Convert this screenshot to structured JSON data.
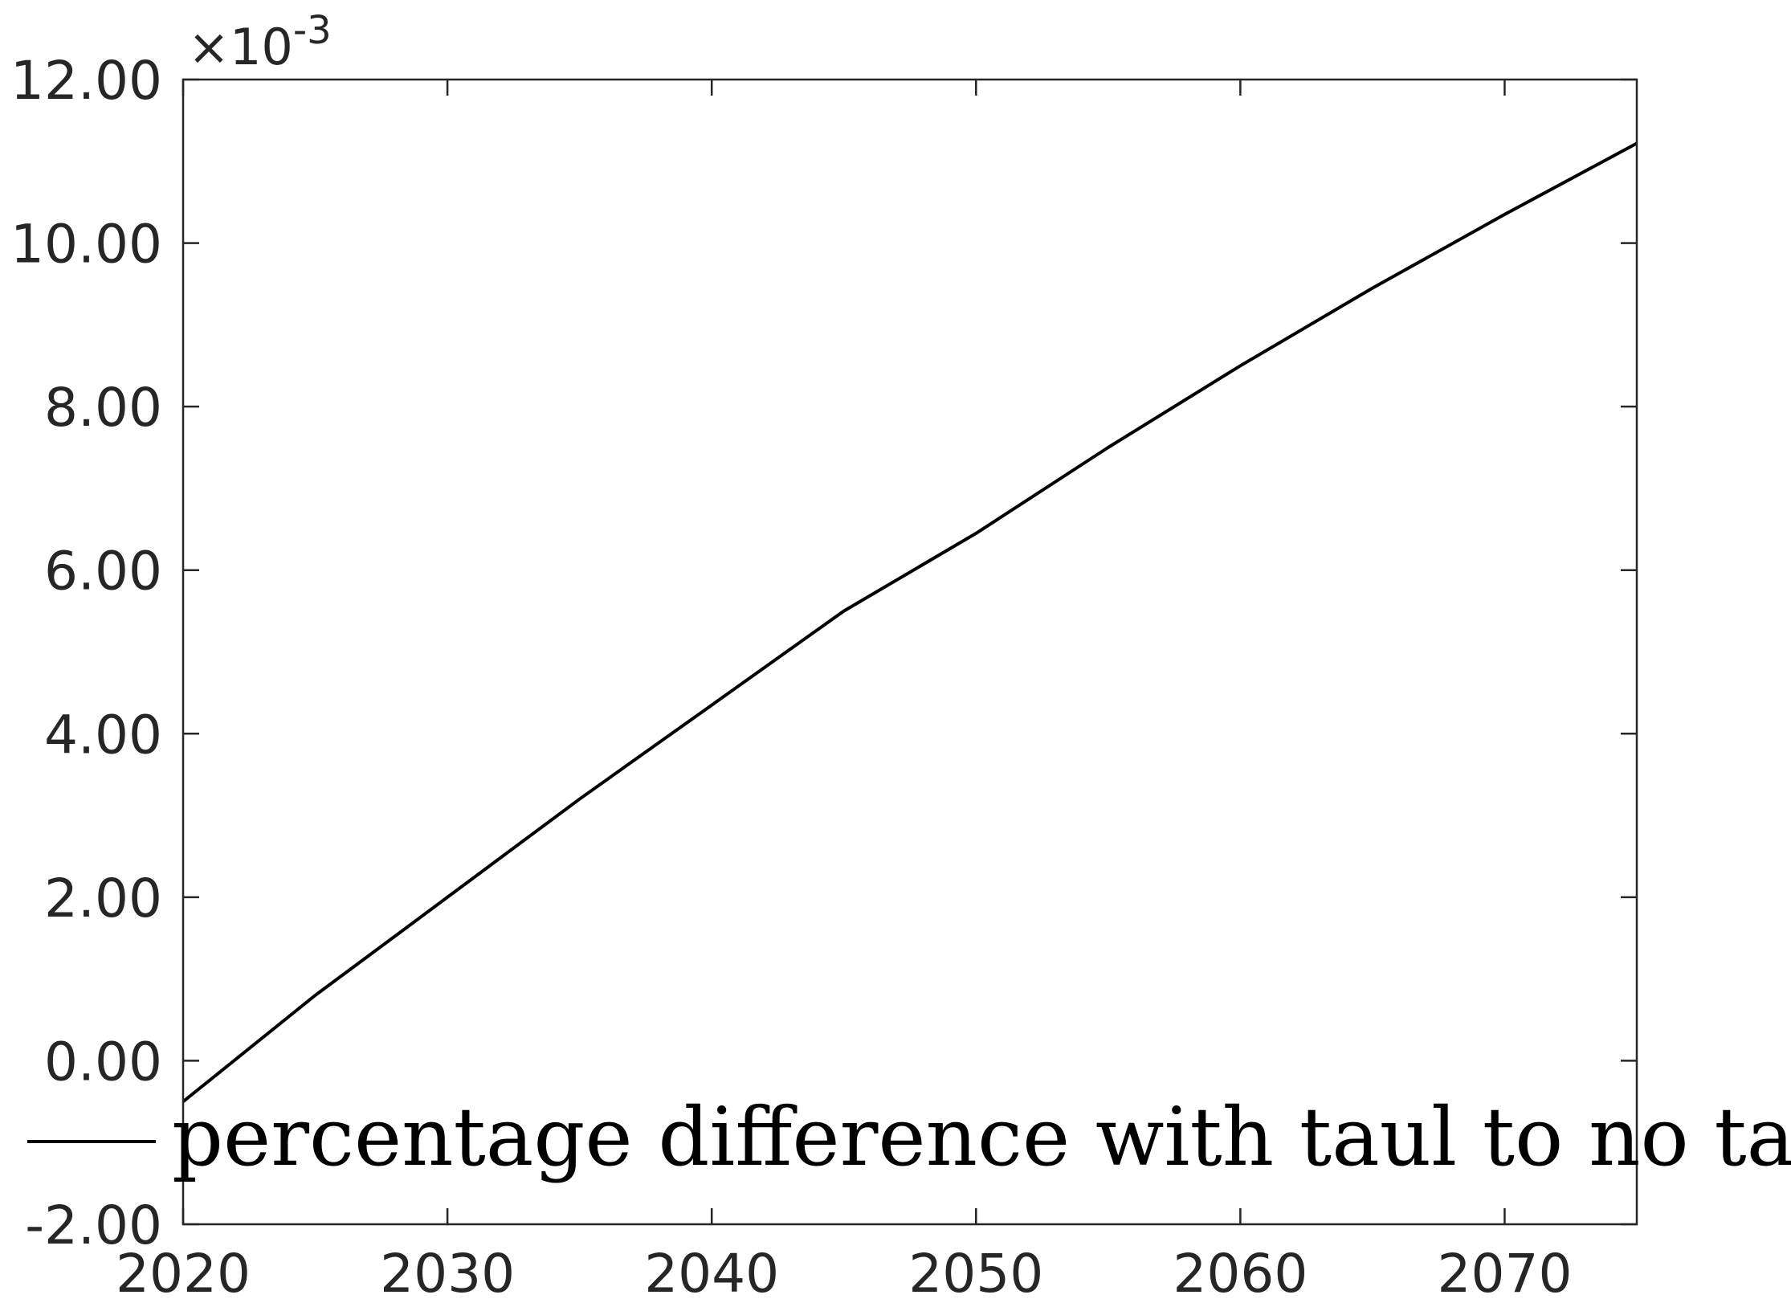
{
  "chart_data": {
    "type": "line",
    "title": "",
    "xlabel": "",
    "ylabel": "",
    "y_exponent_label": "×10",
    "y_exponent_power": "-3",
    "xlim": [
      2020,
      2075
    ],
    "ylim": [
      -2.0,
      12.0
    ],
    "x_ticks": [
      2020,
      2030,
      2040,
      2050,
      2060,
      2070
    ],
    "x_tick_labels": [
      "2020",
      "2030",
      "2040",
      "2050",
      "2060",
      "2070"
    ],
    "y_ticks": [
      -2,
      0,
      2,
      4,
      6,
      8,
      10,
      12
    ],
    "y_tick_labels": [
      "-2.00",
      "0.00",
      "2.00",
      "4.00",
      "6.00",
      "8.00",
      "10.00",
      "12.00"
    ],
    "grid": false,
    "legend_position": "bottom",
    "series": [
      {
        "name": "percentage difference with taul to no taul",
        "color": "#000000",
        "x": [
          2020,
          2025,
          2030,
          2035,
          2040,
          2045,
          2050,
          2055,
          2060,
          2065,
          2070,
          2075
        ],
        "y": [
          -0.5,
          0.8,
          2.0,
          3.2,
          4.35,
          5.5,
          6.45,
          7.5,
          8.5,
          9.45,
          10.35,
          11.22
        ]
      }
    ]
  }
}
